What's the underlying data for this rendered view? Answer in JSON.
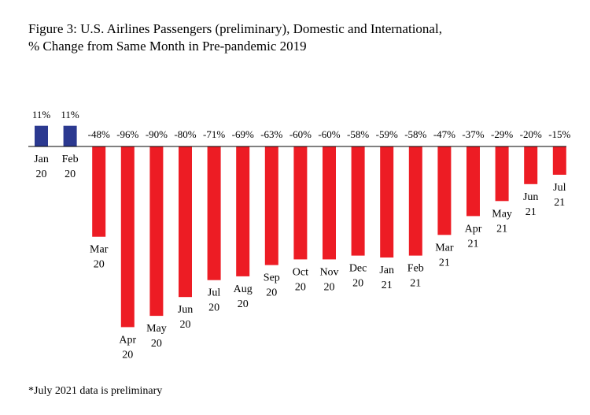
{
  "title_lines": [
    "Figure 3: U.S. Airlines Passengers (preliminary), Domestic and International,",
    "% Change from Same Month in Pre-pandemic 2019"
  ],
  "footnote": "*July 2021 data is preliminary",
  "colors": {
    "positive": "#2b3990",
    "negative": "#ed1c24",
    "baseline": "#000000"
  },
  "chart_data": {
    "type": "bar",
    "title": "Figure 3: U.S. Airlines Passengers (preliminary), Domestic and International, % Change from Same Month in Pre-pandemic 2019",
    "xlabel": "",
    "ylabel": "",
    "categories": [
      [
        "Jan",
        "20"
      ],
      [
        "Feb",
        "20"
      ],
      [
        "Mar",
        "20"
      ],
      [
        "Apr",
        "20"
      ],
      [
        "May",
        "20"
      ],
      [
        "Jun",
        "20"
      ],
      [
        "Jul",
        "20"
      ],
      [
        "Aug",
        "20"
      ],
      [
        "Sep",
        "20"
      ],
      [
        "Oct",
        "20"
      ],
      [
        "Nov",
        "20"
      ],
      [
        "Dec",
        "20"
      ],
      [
        "Jan",
        "21"
      ],
      [
        "Feb",
        "21"
      ],
      [
        "Mar",
        "21"
      ],
      [
        "Apr",
        "21"
      ],
      [
        "May",
        "21"
      ],
      [
        "Jun",
        "21"
      ],
      [
        "Jul",
        "21"
      ]
    ],
    "values": [
      11,
      11,
      -48,
      -96,
      -90,
      -80,
      -71,
      -69,
      -63,
      -60,
      -60,
      -58,
      -59,
      -58,
      -47,
      -37,
      -29,
      -20,
      -15
    ],
    "value_labels": [
      "11%",
      "11%",
      "-48%",
      "-96%",
      "-90%",
      "-80%",
      "-71%",
      "-69%",
      "-63%",
      "-60%",
      "-60%",
      "-58%",
      "-59%",
      "-58%",
      "-47%",
      "-37%",
      "-29%",
      "-20%",
      "-15%"
    ],
    "grid": false,
    "legend": "none"
  }
}
